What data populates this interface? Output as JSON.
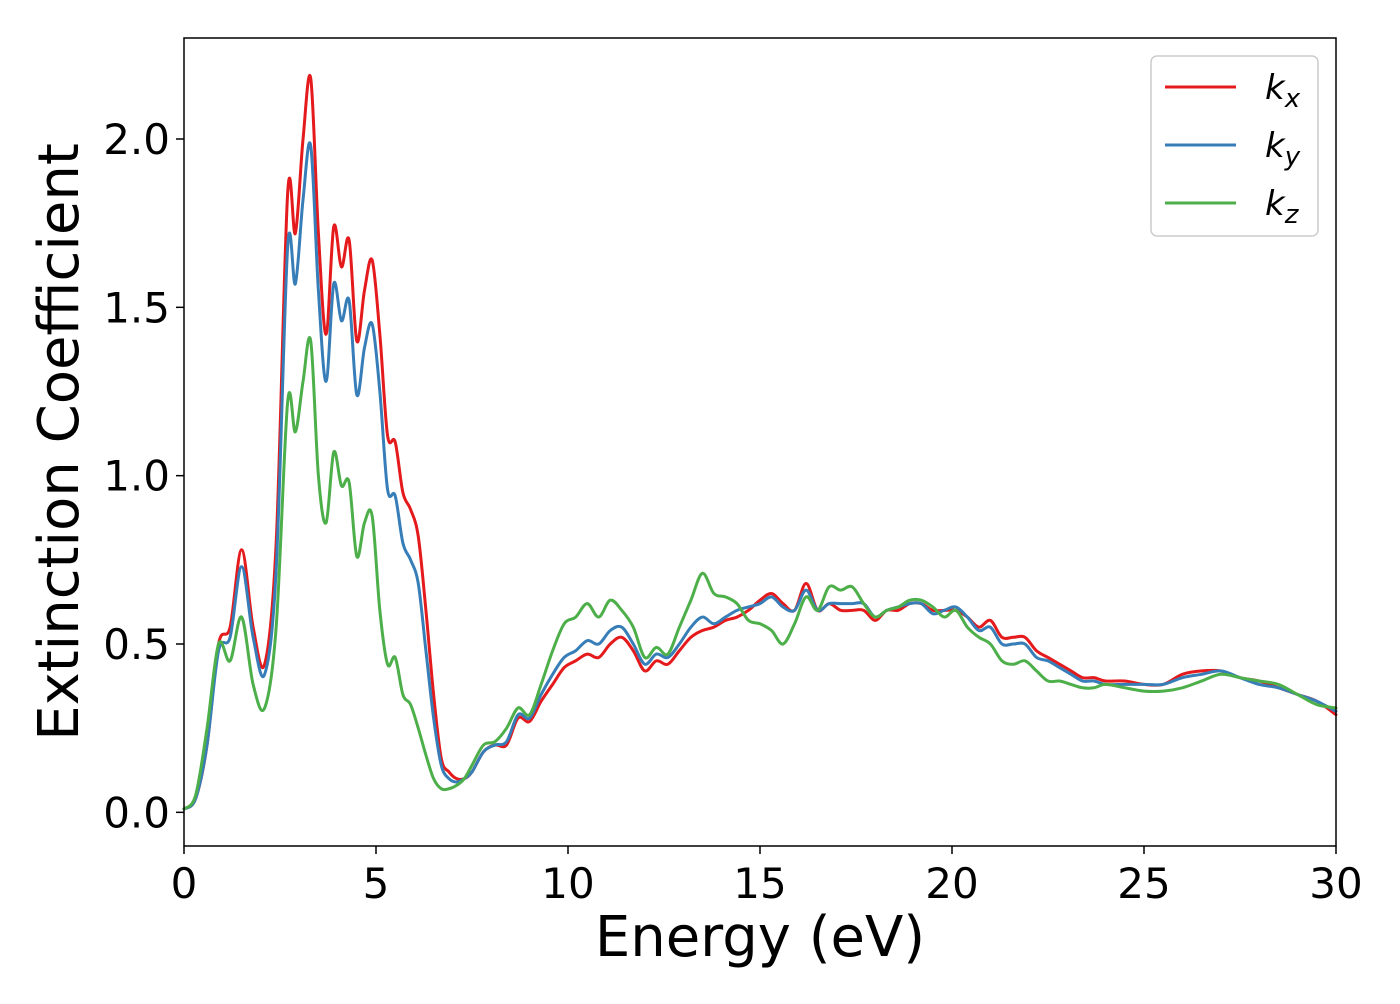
{
  "chart_data": {
    "type": "line",
    "title": "",
    "xlabel": "Energy (eV)",
    "ylabel": "Extinction Coefficient",
    "xlim": [
      0,
      30
    ],
    "ylim": [
      -0.1,
      2.3
    ],
    "xticks": [
      0,
      5,
      10,
      15,
      20,
      25,
      30
    ],
    "xtick_labels": [
      "0",
      "5",
      "10",
      "15",
      "20",
      "25",
      "30"
    ],
    "yticks": [
      0.0,
      0.5,
      1.0,
      1.5,
      2.0
    ],
    "ytick_labels": [
      "0.0",
      "0.5",
      "1.0",
      "1.5",
      "2.0"
    ],
    "grid": false,
    "legend": {
      "position": "top-right"
    },
    "series": [
      {
        "name": "kx",
        "label_base": "k",
        "label_sub": "x",
        "color": "#e41a1c",
        "x": [
          0,
          0.3,
          0.6,
          0.9,
          1.2,
          1.5,
          1.8,
          2.1,
          2.4,
          2.7,
          2.9,
          3.1,
          3.3,
          3.5,
          3.7,
          3.9,
          4.1,
          4.3,
          4.5,
          4.7,
          4.9,
          5.1,
          5.3,
          5.5,
          5.7,
          5.9,
          6.1,
          6.3,
          6.5,
          6.7,
          6.9,
          7.1,
          7.3,
          7.5,
          7.8,
          8.1,
          8.4,
          8.7,
          9.0,
          9.3,
          9.6,
          9.9,
          10.2,
          10.5,
          10.8,
          11.1,
          11.4,
          11.7,
          12.0,
          12.3,
          12.6,
          12.9,
          13.2,
          13.5,
          13.8,
          14.1,
          14.4,
          14.7,
          15.0,
          15.3,
          15.6,
          15.9,
          16.2,
          16.5,
          16.8,
          17.1,
          17.4,
          17.7,
          18.0,
          18.3,
          18.6,
          18.9,
          19.2,
          19.5,
          19.8,
          20.1,
          20.4,
          20.7,
          21.0,
          21.3,
          21.6,
          21.9,
          22.2,
          22.5,
          22.8,
          23.1,
          23.4,
          23.7,
          24.0,
          24.5,
          25.0,
          25.5,
          26.0,
          26.5,
          27.0,
          27.5,
          28.0,
          28.5,
          29.0,
          29.5,
          30.0
        ],
        "y": [
          0.01,
          0.04,
          0.2,
          0.5,
          0.55,
          0.78,
          0.55,
          0.44,
          0.8,
          1.84,
          1.72,
          2.0,
          2.18,
          1.72,
          1.42,
          1.74,
          1.62,
          1.7,
          1.4,
          1.55,
          1.64,
          1.42,
          1.12,
          1.1,
          0.95,
          0.9,
          0.82,
          0.6,
          0.35,
          0.16,
          0.12,
          0.1,
          0.1,
          0.12,
          0.18,
          0.2,
          0.2,
          0.28,
          0.27,
          0.33,
          0.38,
          0.43,
          0.45,
          0.47,
          0.46,
          0.5,
          0.52,
          0.48,
          0.42,
          0.45,
          0.44,
          0.48,
          0.52,
          0.54,
          0.55,
          0.57,
          0.58,
          0.6,
          0.63,
          0.65,
          0.62,
          0.6,
          0.68,
          0.6,
          0.62,
          0.6,
          0.6,
          0.6,
          0.57,
          0.6,
          0.6,
          0.62,
          0.62,
          0.6,
          0.6,
          0.6,
          0.58,
          0.55,
          0.57,
          0.52,
          0.52,
          0.52,
          0.48,
          0.46,
          0.44,
          0.42,
          0.4,
          0.4,
          0.39,
          0.39,
          0.38,
          0.38,
          0.41,
          0.42,
          0.42,
          0.4,
          0.39,
          0.37,
          0.35,
          0.33,
          0.29
        ]
      },
      {
        "name": "ky",
        "label_base": "k",
        "label_sub": "y",
        "color": "#377eb8",
        "x": [
          0,
          0.3,
          0.6,
          0.9,
          1.2,
          1.5,
          1.8,
          2.1,
          2.4,
          2.7,
          2.9,
          3.1,
          3.3,
          3.5,
          3.7,
          3.9,
          4.1,
          4.3,
          4.5,
          4.7,
          4.9,
          5.1,
          5.3,
          5.5,
          5.7,
          5.9,
          6.1,
          6.3,
          6.5,
          6.7,
          6.9,
          7.1,
          7.3,
          7.5,
          7.8,
          8.1,
          8.4,
          8.7,
          9.0,
          9.3,
          9.6,
          9.9,
          10.2,
          10.5,
          10.8,
          11.1,
          11.4,
          11.7,
          12.0,
          12.3,
          12.6,
          12.9,
          13.2,
          13.5,
          13.8,
          14.1,
          14.4,
          14.7,
          15.0,
          15.3,
          15.6,
          15.9,
          16.2,
          16.5,
          16.8,
          17.1,
          17.4,
          17.7,
          18.0,
          18.3,
          18.6,
          18.9,
          19.2,
          19.5,
          19.8,
          20.1,
          20.4,
          20.7,
          21.0,
          21.3,
          21.6,
          21.9,
          22.2,
          22.5,
          22.8,
          23.1,
          23.4,
          23.7,
          24.0,
          24.5,
          25.0,
          25.5,
          26.0,
          26.5,
          27.0,
          27.5,
          28.0,
          28.5,
          29.0,
          29.5,
          30.0
        ],
        "y": [
          0.01,
          0.04,
          0.2,
          0.48,
          0.52,
          0.73,
          0.52,
          0.41,
          0.72,
          1.68,
          1.57,
          1.82,
          1.98,
          1.55,
          1.28,
          1.57,
          1.46,
          1.52,
          1.24,
          1.38,
          1.45,
          1.25,
          0.96,
          0.94,
          0.8,
          0.75,
          0.68,
          0.48,
          0.28,
          0.14,
          0.1,
          0.09,
          0.1,
          0.12,
          0.18,
          0.2,
          0.21,
          0.29,
          0.28,
          0.35,
          0.41,
          0.46,
          0.48,
          0.51,
          0.5,
          0.54,
          0.55,
          0.5,
          0.44,
          0.47,
          0.46,
          0.5,
          0.55,
          0.58,
          0.56,
          0.58,
          0.6,
          0.61,
          0.62,
          0.64,
          0.61,
          0.6,
          0.66,
          0.6,
          0.62,
          0.62,
          0.62,
          0.62,
          0.58,
          0.6,
          0.61,
          0.62,
          0.62,
          0.59,
          0.6,
          0.61,
          0.58,
          0.54,
          0.55,
          0.5,
          0.5,
          0.5,
          0.46,
          0.45,
          0.43,
          0.41,
          0.39,
          0.39,
          0.38,
          0.38,
          0.38,
          0.38,
          0.4,
          0.41,
          0.42,
          0.4,
          0.38,
          0.37,
          0.35,
          0.33,
          0.3
        ]
      },
      {
        "name": "kz",
        "label_base": "k",
        "label_sub": "z",
        "color": "#4daf4a",
        "x": [
          0,
          0.3,
          0.6,
          0.9,
          1.2,
          1.5,
          1.8,
          2.1,
          2.4,
          2.7,
          2.9,
          3.1,
          3.3,
          3.5,
          3.7,
          3.9,
          4.1,
          4.3,
          4.5,
          4.7,
          4.9,
          5.1,
          5.3,
          5.5,
          5.7,
          5.9,
          6.1,
          6.3,
          6.5,
          6.7,
          6.9,
          7.1,
          7.3,
          7.5,
          7.8,
          8.1,
          8.4,
          8.7,
          9.0,
          9.3,
          9.6,
          9.9,
          10.2,
          10.5,
          10.8,
          11.1,
          11.4,
          11.7,
          12.0,
          12.3,
          12.6,
          12.9,
          13.2,
          13.5,
          13.8,
          14.1,
          14.4,
          14.7,
          15.0,
          15.3,
          15.6,
          15.9,
          16.2,
          16.5,
          16.8,
          17.1,
          17.4,
          17.7,
          18.0,
          18.3,
          18.6,
          18.9,
          19.2,
          19.5,
          19.8,
          20.1,
          20.4,
          20.7,
          21.0,
          21.3,
          21.6,
          21.9,
          22.2,
          22.5,
          22.8,
          23.1,
          23.4,
          23.7,
          24.0,
          24.5,
          25.0,
          25.5,
          26.0,
          26.5,
          27.0,
          27.5,
          28.0,
          28.5,
          29.0,
          29.5,
          30.0
        ],
        "y": [
          0.01,
          0.05,
          0.25,
          0.5,
          0.45,
          0.58,
          0.38,
          0.31,
          0.55,
          1.22,
          1.13,
          1.28,
          1.4,
          1.0,
          0.86,
          1.07,
          0.97,
          0.98,
          0.76,
          0.86,
          0.88,
          0.6,
          0.44,
          0.46,
          0.35,
          0.32,
          0.25,
          0.17,
          0.1,
          0.07,
          0.07,
          0.08,
          0.1,
          0.14,
          0.2,
          0.21,
          0.25,
          0.31,
          0.29,
          0.38,
          0.48,
          0.56,
          0.58,
          0.62,
          0.58,
          0.63,
          0.6,
          0.55,
          0.46,
          0.49,
          0.47,
          0.55,
          0.63,
          0.71,
          0.65,
          0.64,
          0.62,
          0.57,
          0.56,
          0.54,
          0.5,
          0.56,
          0.64,
          0.6,
          0.67,
          0.66,
          0.67,
          0.62,
          0.58,
          0.6,
          0.61,
          0.63,
          0.63,
          0.61,
          0.58,
          0.6,
          0.55,
          0.52,
          0.5,
          0.45,
          0.44,
          0.45,
          0.42,
          0.39,
          0.39,
          0.38,
          0.37,
          0.37,
          0.38,
          0.37,
          0.36,
          0.36,
          0.37,
          0.39,
          0.41,
          0.4,
          0.39,
          0.38,
          0.35,
          0.32,
          0.31
        ]
      }
    ]
  }
}
